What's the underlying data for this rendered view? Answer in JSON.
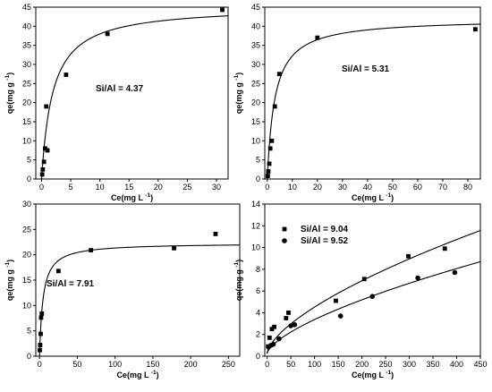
{
  "chart_data": [
    {
      "type": "scatter",
      "xlabel": "Ce(mg L",
      "ylabel": "qe(mg g",
      "label_sup": "-1",
      "xlim": [
        -1,
        32
      ],
      "ylim": [
        0,
        45
      ],
      "xticks": [
        0,
        5,
        10,
        15,
        20,
        25,
        30
      ],
      "yticks": [
        0,
        5,
        10,
        15,
        20,
        25,
        30,
        35,
        40,
        45
      ],
      "annotation": "Si/Al = 4.37",
      "series": [
        {
          "marker": "square",
          "x": [
            0.1,
            0.2,
            0.4,
            0.6,
            0.8,
            1.0,
            4.2,
            11.3,
            31.0
          ],
          "y": [
            1.2,
            2.5,
            4.5,
            8.0,
            19.0,
            7.5,
            27.3,
            38.0,
            44.3
          ]
        }
      ],
      "fit": {
        "qmax": 45.3,
        "K": 0.52
      }
    },
    {
      "type": "scatter",
      "xlabel": "Ce(mg L",
      "ylabel": "qe(mg g",
      "label_sup": "-1",
      "xlim": [
        -1,
        85
      ],
      "ylim": [
        0,
        45
      ],
      "xticks": [
        0,
        10,
        20,
        30,
        40,
        50,
        60,
        70,
        80
      ],
      "yticks": [
        0,
        5,
        10,
        15,
        20,
        25,
        30,
        35,
        40,
        45
      ],
      "annotation": "Si/Al = 5.31",
      "series": [
        {
          "marker": "square",
          "x": [
            0.2,
            0.4,
            0.8,
            1.2,
            1.8,
            3.0,
            4.8,
            20.0,
            83.0
          ],
          "y": [
            0.8,
            2.0,
            4.0,
            8.0,
            10.0,
            19.0,
            27.5,
            37.0,
            39.2
          ]
        }
      ],
      "fit": {
        "qmax": 42.0,
        "K": 0.33
      }
    },
    {
      "type": "scatter",
      "xlabel": "Ce(mg L",
      "ylabel": "qe(mg g",
      "label_sup": "-1",
      "xlim": [
        -5,
        265
      ],
      "ylim": [
        0,
        30
      ],
      "xticks": [
        0,
        50,
        100,
        150,
        200,
        250
      ],
      "yticks": [
        0,
        5,
        10,
        15,
        20,
        25,
        30
      ],
      "annotation": "Si/Al = 7.91",
      "series": [
        {
          "marker": "square",
          "x": [
            0.3,
            0.8,
            1.5,
            2.0,
            3.0,
            25.0,
            68.0,
            178.0,
            233.0
          ],
          "y": [
            1.2,
            2.2,
            4.4,
            7.6,
            8.4,
            16.8,
            20.9,
            21.3,
            24.1
          ]
        }
      ],
      "fit": {
        "qmax": 22.3,
        "K": 0.22
      }
    },
    {
      "type": "scatter",
      "xlabel": "Ce(mg L",
      "ylabel": "qe(mg g",
      "label_sup": "-1",
      "xlim": [
        -5,
        450
      ],
      "ylim": [
        0,
        14
      ],
      "xticks": [
        0,
        50,
        100,
        150,
        200,
        250,
        300,
        350,
        400,
        450
      ],
      "yticks": [
        0,
        2,
        4,
        6,
        8,
        10,
        12,
        14
      ],
      "legend": "top-left",
      "series": [
        {
          "name": "Si/Al = 9.04",
          "marker": "square",
          "x": [
            2,
            5,
            10,
            15,
            40,
            45,
            145,
            205,
            298,
            375
          ],
          "y": [
            0.9,
            1.7,
            2.5,
            2.7,
            3.5,
            4.0,
            5.1,
            7.1,
            9.2,
            9.9
          ],
          "fit": {
            "a": 0.216,
            "b": 0.648
          }
        },
        {
          "name": "Si/Al = 9.52",
          "marker": "circle",
          "x": [
            3,
            8,
            13,
            25,
            50,
            58,
            155,
            222,
            318,
            396
          ],
          "y": [
            0.85,
            1.0,
            1.1,
            1.6,
            2.8,
            2.9,
            3.7,
            5.5,
            7.2,
            7.7
          ],
          "fit": {
            "a": 0.148,
            "b": 0.662
          }
        }
      ]
    }
  ]
}
